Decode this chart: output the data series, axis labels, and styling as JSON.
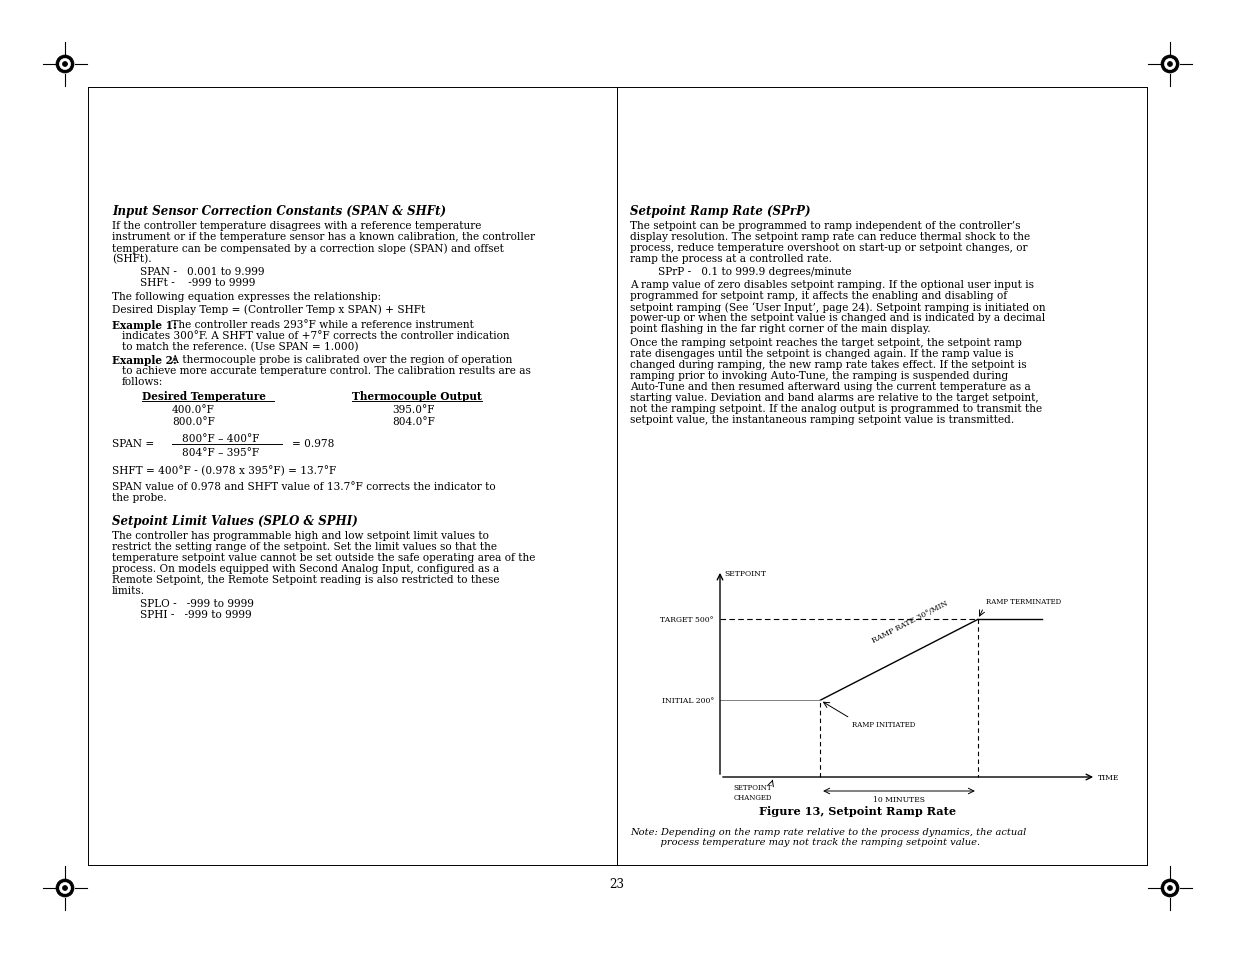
{
  "page_bg": "#ffffff",
  "page_number": "23",
  "left_col": {
    "section1_title": "Input Sensor Correction Constants (SPAN & SHFt)",
    "section2_title": "Setpoint Limit Values (SPLO & SPHI)"
  },
  "right_col": {
    "section3_title": "Setpoint Ramp Rate (SPrP)",
    "figure_caption": "Figure 13, Setpoint Ramp Rate",
    "note_line1": "Note: Depending on the ramp rate relative to the process dynamics, the actual",
    "note_line2": "    process temperature may not track the ramping setpoint value."
  },
  "diagram": {
    "setpoint_label": "SETPOINT",
    "time_label": "TIME",
    "minutes_label": "10 MINUTES",
    "target_label": "TARGET 500°",
    "initial_label": "INITIAL 200°",
    "setpoint_changed_label": "SETPOINT\nCHANGED",
    "ramp_rate_label": "RAMP RATE 30°/MIN",
    "ramp_initiated_label": "RAMP INITIATED",
    "ramp_terminated_label": "RAMP TERMINATED"
  }
}
